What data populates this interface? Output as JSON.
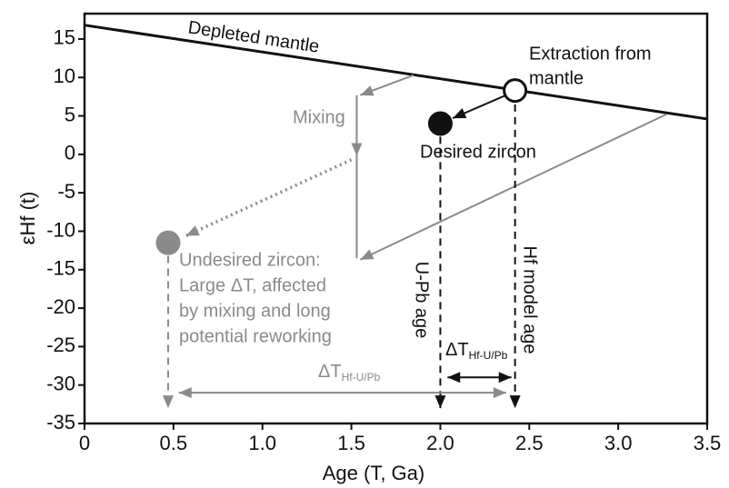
{
  "chart_data": {
    "type": "annotated-line",
    "xlabel": "Age (T, Ga)",
    "ylabel": "εHf (t)",
    "xlim": [
      0,
      3.5
    ],
    "ylim": [
      -35,
      18.3
    ],
    "xticks": [
      0,
      0.5,
      {
        "value": 1,
        "label": "1.0"
      },
      1.5,
      {
        "value": 2,
        "label": "2.0"
      },
      2.5,
      {
        "value": 3,
        "label": "3.0"
      },
      3.5
    ],
    "yticks": [
      15,
      10,
      5,
      0,
      -5,
      -10,
      -15,
      -20,
      -25,
      -30,
      -35
    ],
    "mantle_line": {
      "name": "Depleted mantle",
      "color": "#111111",
      "x": [
        0,
        3.5
      ],
      "y": [
        16.8,
        4.6
      ]
    },
    "points": [
      {
        "name": "Extraction from mantle",
        "x": 2.42,
        "y": 8.3,
        "fill": "#ffffff",
        "stroke": "#111111"
      },
      {
        "name": "Desired zircon",
        "x": 2.0,
        "y": 4.0,
        "fill": "#111111",
        "stroke": "#111111"
      },
      {
        "name": "Undesired zircon:",
        "x": 0.47,
        "y": -11.5,
        "fill": "#8a8a8a",
        "stroke": "#8a8a8a"
      }
    ],
    "arrows": [
      {
        "from": [
          2.37,
          7.7
        ],
        "to": [
          2.07,
          4.7
        ],
        "color": "#111111",
        "style": "solid",
        "heads": "end"
      },
      {
        "from": [
          1.85,
          10.3
        ],
        "to": [
          1.55,
          7.7
        ],
        "color": "#8a8a8a",
        "style": "solid",
        "heads": "end"
      },
      {
        "from": [
          1.53,
          7.7
        ],
        "to": [
          1.53,
          -0.2
        ],
        "color": "#8a8a8a",
        "style": "solid",
        "heads": "end"
      },
      {
        "from": [
          1.53,
          -0.2
        ],
        "to": [
          1.53,
          -13.5
        ],
        "color": "#8a8a8a",
        "style": "solid",
        "heads": "none"
      },
      {
        "from": [
          3.27,
          5.2
        ],
        "to": [
          1.55,
          -13.7
        ],
        "color": "#8a8a8a",
        "style": "solid",
        "heads": "end"
      },
      {
        "from": [
          1.5,
          -0.7
        ],
        "to": [
          0.57,
          -10.6
        ],
        "color": "#8a8a8a",
        "style": "dotted",
        "heads": "end"
      },
      {
        "from": [
          0.47,
          -13.2
        ],
        "to": [
          0.47,
          -33
        ],
        "color": "#8a8a8a",
        "style": "dashed",
        "heads": "end"
      },
      {
        "from": [
          2.0,
          2.3
        ],
        "to": [
          2.0,
          -33
        ],
        "color": "#111111",
        "style": "dashed",
        "heads": "end"
      },
      {
        "from": [
          2.42,
          6.5
        ],
        "to": [
          2.42,
          -33
        ],
        "color": "#111111",
        "style": "dashed",
        "heads": "end"
      },
      {
        "from": [
          0.53,
          -31
        ],
        "to": [
          2.37,
          -31
        ],
        "color": "#8a8a8a",
        "style": "solid",
        "heads": "both"
      },
      {
        "from": [
          2.04,
          -29
        ],
        "to": [
          2.4,
          -29
        ],
        "color": "#111111",
        "style": "solid",
        "heads": "both"
      }
    ],
    "annotations": {
      "extraction": [
        "Extraction from",
        "mantle"
      ],
      "mixing": "Mixing",
      "desired": "Desired zircon",
      "undesired": [
        "Undesired zircon:",
        "Large ΔT, affected",
        "by mixing and long",
        "potential reworking"
      ],
      "upb_age": "U-Pb age",
      "hf_model_age": "Hf model age",
      "delta_gray": {
        "text": "ΔT",
        "subscript": "Hf-U/Pb"
      },
      "delta_black": {
        "text": "ΔT",
        "subscript": "Hf-U/Pb"
      }
    }
  }
}
